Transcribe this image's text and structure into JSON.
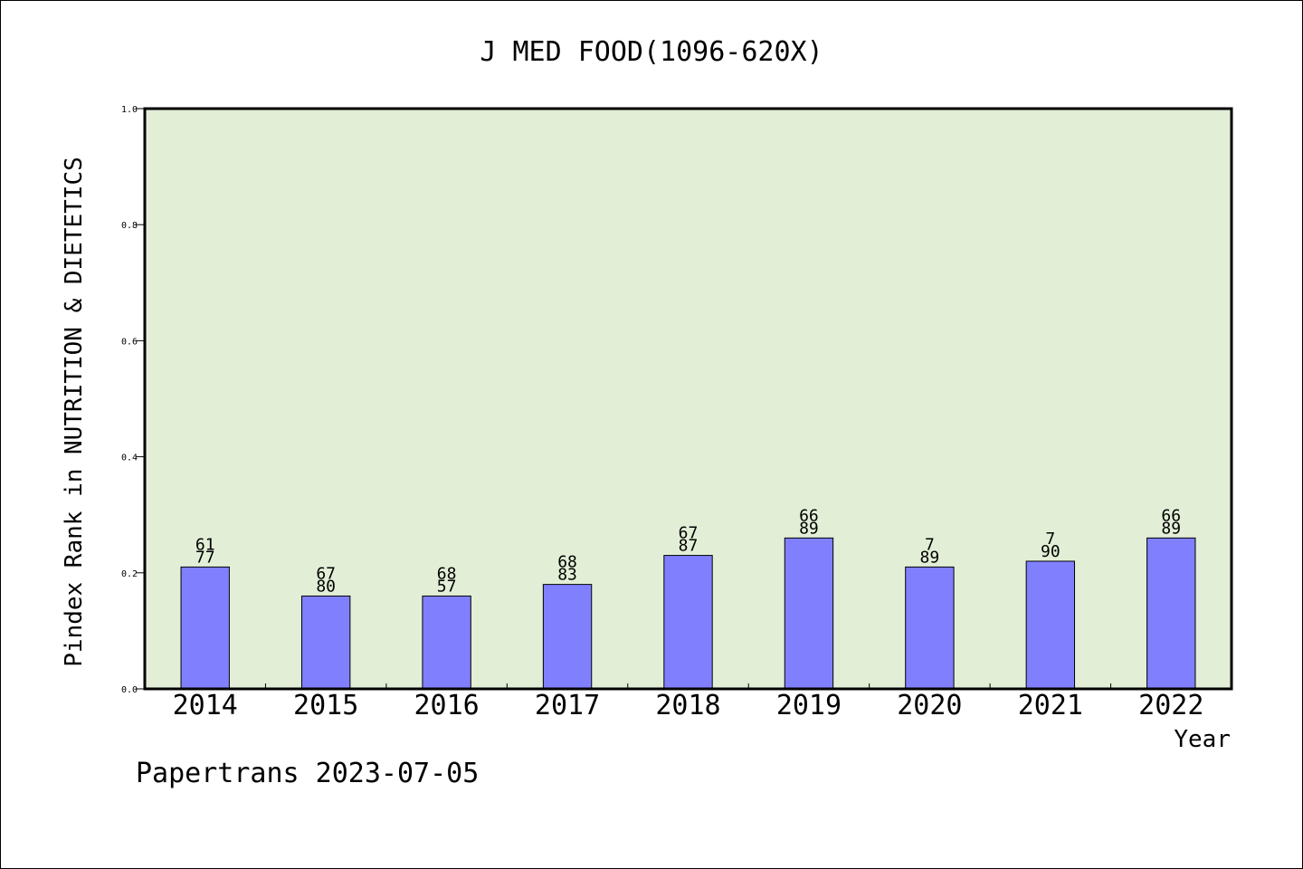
{
  "chart_data": {
    "type": "bar",
    "title": "J MED FOOD(1096-620X)",
    "xlabel": "Year",
    "ylabel": "Pindex Rank in NUTRITION & DIETETICS",
    "categories": [
      "2014",
      "2015",
      "2016",
      "2017",
      "2018",
      "2019",
      "2020",
      "2021",
      "2022"
    ],
    "values": [
      0.21,
      0.16,
      0.16,
      0.18,
      0.23,
      0.26,
      0.21,
      0.22,
      0.26
    ],
    "bar_labels": [
      [
        "61",
        "77"
      ],
      [
        "67",
        "80"
      ],
      [
        "68",
        "57"
      ],
      [
        "68",
        "83"
      ],
      [
        "67",
        "87"
      ],
      [
        "66",
        "89"
      ],
      [
        "7",
        "89"
      ],
      [
        "7",
        "90"
      ],
      [
        "66",
        "89"
      ]
    ],
    "ylim": [
      0,
      1.0
    ],
    "yticks": [
      "0.0",
      "0.2",
      "0.4",
      "0.6",
      "0.8",
      "1.0"
    ],
    "grid": false,
    "legend": "none",
    "colors": {
      "bar": "#8080ff",
      "plot_background": "#e2efd6",
      "axis": "#000000"
    }
  },
  "footer": {
    "credit": "Papertrans 2023-07-05"
  }
}
